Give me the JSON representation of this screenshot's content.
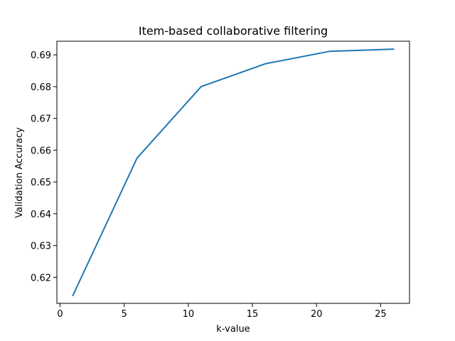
{
  "chart_data": {
    "type": "line",
    "title": "Item-based collaborative filtering",
    "xlabel": "k-value",
    "ylabel": "Validation Accuracy",
    "xlim": [
      -0.25,
      27.25
    ],
    "ylim": [
      0.6118,
      0.6943
    ],
    "xticks": [
      0,
      5,
      10,
      15,
      20,
      25
    ],
    "yticks": [
      0.62,
      0.63,
      0.64,
      0.65,
      0.66,
      0.67,
      0.68,
      0.69
    ],
    "x": [
      1,
      6,
      11,
      16,
      21,
      26
    ],
    "series": [
      {
        "values": [
          0.6143,
          0.6575,
          0.68,
          0.6872,
          0.6911,
          0.6918
        ],
        "color": "#1f77b4"
      }
    ],
    "grid": false,
    "legend": "none"
  }
}
